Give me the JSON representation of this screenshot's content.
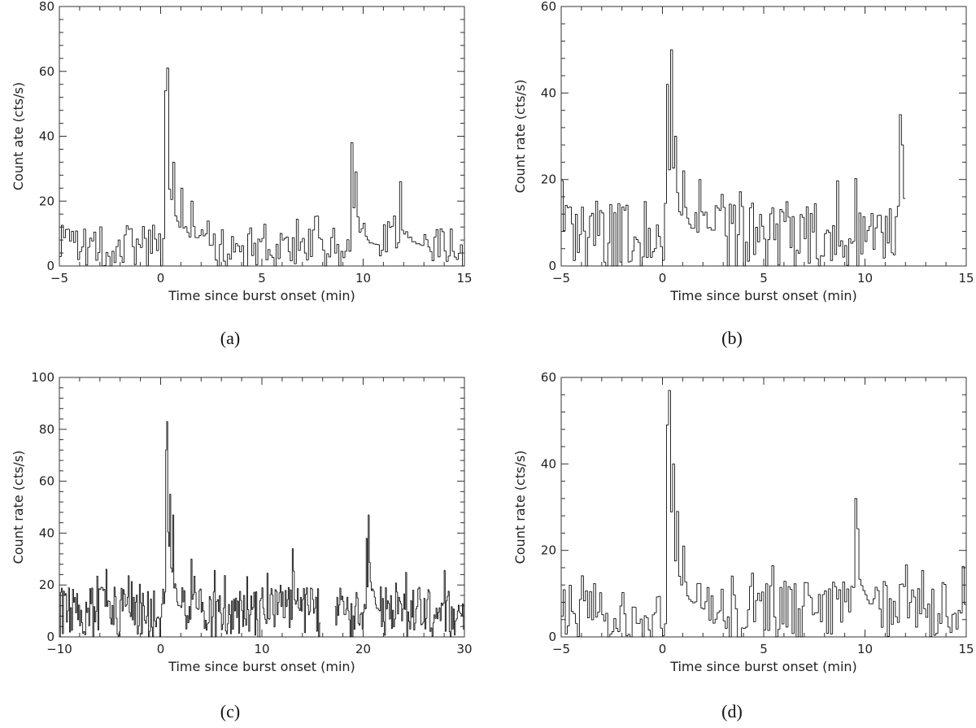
{
  "chart_data": [
    {
      "panel": "(a)",
      "type": "line",
      "style": "step histogram",
      "xlabel": "Time since burst onset (min)",
      "ylabel": "Count ate (cts/s)",
      "xlim": [
        -5,
        15
      ],
      "ylim": [
        0,
        80
      ],
      "xticks": [
        -5,
        0,
        5,
        10,
        15
      ],
      "yticks": [
        0,
        20,
        40,
        60,
        80
      ],
      "bin_min": 0.1,
      "series": [
        {
          "x_start": -5,
          "x_end": 15,
          "baseline": 6,
          "peaks": [
            {
              "x": 0.3,
              "y": 61
            },
            {
              "x": 0.2,
              "y": 54
            },
            {
              "x": 0.6,
              "y": 32
            },
            {
              "x": 1.0,
              "y": 24
            },
            {
              "x": 1.5,
              "y": 20
            },
            {
              "x": 9.4,
              "y": 38
            },
            {
              "x": 9.6,
              "y": 29
            },
            {
              "x": 11.8,
              "y": 26
            }
          ]
        }
      ]
    },
    {
      "panel": "(b)",
      "type": "line",
      "style": "step histogram",
      "xlabel": "Time since burst onset (min)",
      "ylabel": "Count rate (cts/s)",
      "xlim": [
        -5,
        15
      ],
      "ylim": [
        0,
        60
      ],
      "xticks": [
        -5,
        0,
        5,
        10,
        15
      ],
      "yticks": [
        0,
        20,
        40,
        60
      ],
      "bin_min": 0.1,
      "series": [
        {
          "x_start": -5,
          "x_end": 12.0,
          "baseline": 7,
          "peaks": [
            {
              "x": 0.4,
              "y": 50
            },
            {
              "x": 0.2,
              "y": 42
            },
            {
              "x": 0.6,
              "y": 30
            },
            {
              "x": 1.0,
              "y": 22
            },
            {
              "x": 1.8,
              "y": 20
            },
            {
              "x": 11.7,
              "y": 35
            },
            {
              "x": 11.8,
              "y": 28
            }
          ]
        }
      ]
    },
    {
      "panel": "(c)",
      "type": "line",
      "style": "step histogram",
      "xlabel": "Time since burst onset (min)",
      "ylabel": "Count rate (cts/s)",
      "xlim": [
        -10,
        30
      ],
      "ylim": [
        0,
        100
      ],
      "xticks": [
        -10,
        0,
        10,
        20,
        30
      ],
      "yticks": [
        0,
        20,
        40,
        60,
        80,
        100
      ],
      "bin_min": 0.1,
      "gaps": [
        [
          15.8,
          17.2
        ]
      ],
      "series": [
        {
          "x_start": -10,
          "x_end": 30,
          "baseline": 9,
          "peaks": [
            {
              "x": 0.6,
              "y": 83
            },
            {
              "x": 0.5,
              "y": 72
            },
            {
              "x": 0.9,
              "y": 55
            },
            {
              "x": 1.2,
              "y": 47
            },
            {
              "x": 3.0,
              "y": 30
            },
            {
              "x": 13.0,
              "y": 34
            },
            {
              "x": 20.6,
              "y": 47
            },
            {
              "x": 20.4,
              "y": 38
            }
          ]
        }
      ]
    },
    {
      "panel": "(d)",
      "type": "line",
      "style": "step histogram",
      "xlabel": "Time since burst onset (min)",
      "ylabel": "Count rate (cts/s)",
      "xlim": [
        -5,
        15
      ],
      "ylim": [
        0,
        60
      ],
      "xticks": [
        -5,
        0,
        5,
        10,
        15
      ],
      "yticks": [
        0,
        20,
        40,
        60
      ],
      "bin_min": 0.1,
      "series": [
        {
          "x_start": -5,
          "x_end": 15,
          "baseline": 6,
          "peaks": [
            {
              "x": 0.3,
              "y": 57
            },
            {
              "x": 0.2,
              "y": 49
            },
            {
              "x": 0.5,
              "y": 40
            },
            {
              "x": 0.7,
              "y": 29
            },
            {
              "x": 1.0,
              "y": 21
            },
            {
              "x": 9.5,
              "y": 32
            },
            {
              "x": 9.6,
              "y": 25
            }
          ]
        }
      ]
    }
  ]
}
